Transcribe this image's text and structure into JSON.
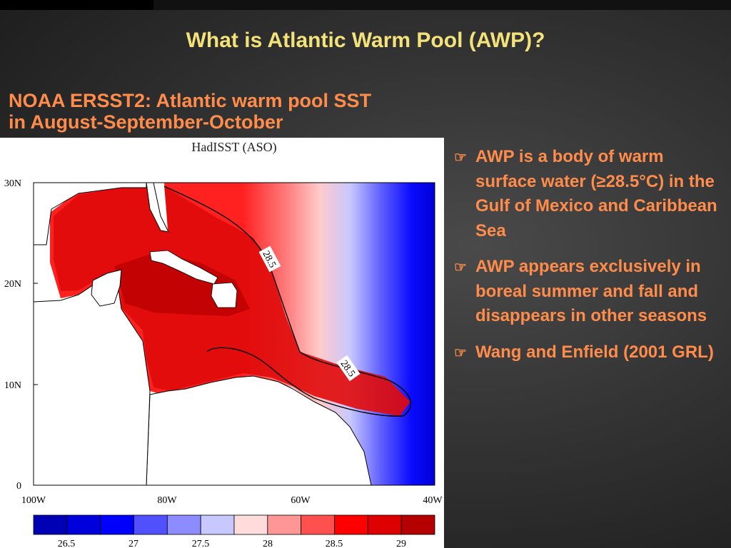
{
  "slide": {
    "title": "What is Atlantic Warm Pool (AWP)?",
    "subtitle_lines": [
      "NOAA ERSST2: Atlantic warm pool  SST",
      "in August-September-October"
    ]
  },
  "figure": {
    "plot_title": "HadISST (ASO)",
    "lat_labels": [
      "30N",
      "20N",
      "10N",
      "0"
    ],
    "lon_labels": [
      "100W",
      "80W",
      "60W",
      "40W"
    ],
    "contour_label": "28.5",
    "colorbar_colors": [
      "#0000b4",
      "#0000dc",
      "#0000ff",
      "#5050ff",
      "#8c8cff",
      "#c8c8ff",
      "#ffdcdc",
      "#ff9696",
      "#ff5050",
      "#ff0000",
      "#dc0000",
      "#b40000"
    ],
    "colorbar_ticks": [
      "26.5",
      "27",
      "27.5",
      "28",
      "28.5",
      "29"
    ],
    "land_color": "#ffffff",
    "coast_color": "#000000"
  },
  "bullets": [
    {
      "icon": "pointing-hand-icon",
      "text": "AWP is a body of warm surface water (≥28.5°C) in the Gulf of Mexico and Caribbean Sea"
    },
    {
      "icon": "pointing-hand-icon",
      "text": "AWP appears exclusively in boreal summer and fall and disappears in other seasons"
    },
    {
      "icon": "pointing-hand-icon",
      "text": "Wang and Enfield (2001 GRL)"
    }
  ]
}
